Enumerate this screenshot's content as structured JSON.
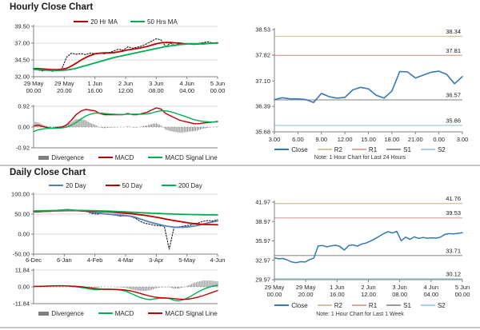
{
  "panels": {
    "hourly": {
      "title": "Hourly Close Chart"
    },
    "hourly_pivot": {
      "note": "Note: 1 Hour Chart for Last 24 Hours"
    },
    "daily": {
      "title": "Daily Close Chart"
    },
    "weekly_pivot": {
      "note": "Note: 1 Hour Chart for Last 1 Week"
    }
  },
  "colors": {
    "ma_red": "#C00000",
    "ma_green": "#00B050",
    "close_black": "#1A1A1A",
    "close_blue": "#3478B5",
    "day20_blue": "#4F81BD",
    "divergence_gray": "#7F7F7F",
    "r2_olive": "#CDC6A0",
    "r1_pink": "#E0A8A4",
    "s1_gray": "#9B9B9B",
    "s2_cyan": "#A8D4DE",
    "grid": "#D9D9D9",
    "axis": "#808080"
  },
  "legends": {
    "hourly_ma": [
      {
        "label": "20 Hr MA",
        "color": "#C00000",
        "type": "line"
      },
      {
        "label": "50 Hrs MA",
        "color": "#00B050",
        "type": "line"
      }
    ],
    "hourly_macd": [
      {
        "label": "Divergence",
        "color": "#7F7F7F",
        "type": "bar"
      },
      {
        "label": "MACD",
        "color": "#C00000",
        "type": "line"
      },
      {
        "label": "MACD Signal Line",
        "color": "#00B050",
        "type": "line"
      }
    ],
    "hourly_pivot": [
      {
        "label": "Close",
        "color": "#3478B5",
        "type": "line"
      },
      {
        "label": "R2",
        "color": "#CDC6A0",
        "type": "line"
      },
      {
        "label": "R1",
        "color": "#E0A8A4",
        "type": "line"
      },
      {
        "label": "S1",
        "color": "#9B9B9B",
        "type": "line"
      },
      {
        "label": "S2",
        "color": "#A8D4DE",
        "type": "line"
      }
    ],
    "daily_ma": [
      {
        "label": "20 Day",
        "color": "#4F81BD",
        "type": "line"
      },
      {
        "label": "50 Day",
        "color": "#C00000",
        "type": "line"
      },
      {
        "label": "200 Day",
        "color": "#00B050",
        "type": "line"
      }
    ],
    "daily_macd": [
      {
        "label": "Divergence",
        "color": "#7F7F7F",
        "type": "bar"
      },
      {
        "label": "MACD",
        "color": "#00B050",
        "type": "line"
      },
      {
        "label": "MACD Signal Line",
        "color": "#C00000",
        "type": "line"
      }
    ],
    "daily_pivot": [
      {
        "label": "Close",
        "color": "#3478B5",
        "type": "line"
      },
      {
        "label": "R2",
        "color": "#CDC6A0",
        "type": "line"
      },
      {
        "label": "R1",
        "color": "#E0A8A4",
        "type": "line"
      },
      {
        "label": "S1",
        "color": "#9B9B9B",
        "type": "line"
      },
      {
        "label": "S2",
        "color": "#A8D4DE",
        "type": "line"
      }
    ]
  },
  "chart_data": [
    {
      "key": "hourly_close",
      "type": "line",
      "title": "Hourly Close Chart",
      "grid": true,
      "zero_dotted": false,
      "yticks": [
        "39.50",
        "37.00",
        "34.50",
        "32.00"
      ],
      "ylim": [
        32.0,
        39.5
      ],
      "xticks": [
        [
          "29 May",
          "00.00"
        ],
        [
          "29 May",
          "20.00"
        ],
        [
          "1 Jun",
          "16.00"
        ],
        [
          "2 Jun",
          "12.00"
        ],
        [
          "3 Jun",
          "08.00"
        ],
        [
          "4 Jun",
          "04.00"
        ],
        [
          "5 Jun",
          "00.00"
        ]
      ],
      "series": [
        {
          "name": "Close",
          "type": "line",
          "color": "#1A1A1A",
          "width": 1.1,
          "dash": "1.6,1.9",
          "values": [
            33.3,
            33.0,
            32.85,
            33.1,
            32.8,
            33.0,
            33.2,
            34.9,
            35.5,
            35.35,
            35.45,
            35.3,
            35.5,
            35.45,
            35.55,
            35.4,
            35.6,
            35.85,
            36.1,
            35.95,
            36.45,
            36.25,
            36.4,
            36.6,
            36.9,
            37.3,
            37.65,
            37.5,
            36.5,
            37.0,
            36.6,
            37.05,
            36.85,
            36.9,
            36.85,
            36.95,
            37.1,
            37.2,
            37.0,
            37.1
          ]
        },
        {
          "name": "20 Hr MA",
          "type": "line",
          "color": "#C00000",
          "width": 1.8,
          "values": [
            33.2,
            33.2,
            33.15,
            33.1,
            33.05,
            33.05,
            33.1,
            33.25,
            33.6,
            34.0,
            34.45,
            34.85,
            35.15,
            35.4,
            35.5,
            35.55,
            35.55,
            35.6,
            35.7,
            35.85,
            36.0,
            36.1,
            36.2,
            36.35,
            36.5,
            36.7,
            36.9,
            37.05,
            37.1,
            37.1,
            37.05,
            37.0,
            36.9,
            36.9,
            36.85,
            36.9,
            36.9,
            36.95,
            37.0,
            37.05
          ]
        },
        {
          "name": "50 Hrs MA",
          "type": "line",
          "color": "#00B050",
          "width": 1.8,
          "values": [
            33.1,
            33.05,
            33.0,
            32.95,
            32.9,
            32.9,
            32.95,
            33.0,
            33.1,
            33.25,
            33.45,
            33.65,
            33.85,
            34.05,
            34.25,
            34.45,
            34.65,
            34.85,
            35.0,
            35.15,
            35.3,
            35.45,
            35.6,
            35.75,
            35.9,
            36.05,
            36.2,
            36.35,
            36.5,
            36.6,
            36.7,
            36.8,
            36.85,
            36.9,
            36.9,
            36.9,
            36.95,
            36.95,
            37.0,
            37.0
          ]
        }
      ]
    },
    {
      "key": "hourly_macd",
      "type": "bar-line",
      "grid": true,
      "zero_dotted": true,
      "yticks": [
        "0.92",
        "0.00",
        "-0.92"
      ],
      "ylim": [
        -0.92,
        0.92
      ],
      "xticks": [],
      "series": [
        {
          "name": "Divergence",
          "type": "bar",
          "color": "#7F7F7F",
          "values": [
            0.25,
            0.2,
            0.1,
            0.03,
            0.01,
            0.03,
            0.04,
            0.1,
            0.22,
            0.35,
            0.35,
            0.3,
            0.18,
            0.1,
            -0.02,
            -0.05,
            -0.03,
            -0.02,
            -0.01,
            -0.01,
            0.03,
            -0.02,
            -0.02,
            0.03,
            0.07,
            0.13,
            0.17,
            0.08,
            -0.12,
            -0.18,
            -0.22,
            -0.25,
            -0.23,
            -0.2,
            -0.18,
            -0.13,
            -0.07,
            -0.03,
            0.0,
            0.02
          ]
        },
        {
          "name": "MACD",
          "type": "line",
          "color": "#C00000",
          "width": 1.4,
          "values": [
            0.05,
            0.08,
            0.02,
            -0.03,
            -0.05,
            -0.02,
            0.0,
            0.1,
            0.3,
            0.55,
            0.7,
            0.78,
            0.75,
            0.72,
            0.6,
            0.55,
            0.55,
            0.55,
            0.55,
            0.55,
            0.6,
            0.55,
            0.55,
            0.6,
            0.65,
            0.75,
            0.85,
            0.8,
            0.6,
            0.5,
            0.4,
            0.3,
            0.25,
            0.2,
            0.15,
            0.15,
            0.18,
            0.2,
            0.22,
            0.25
          ]
        },
        {
          "name": "MACD Signal Line",
          "type": "line",
          "color": "#00B050",
          "width": 1.4,
          "values": [
            -0.2,
            -0.12,
            -0.08,
            -0.06,
            -0.06,
            -0.05,
            -0.04,
            0.0,
            0.08,
            0.2,
            0.35,
            0.48,
            0.57,
            0.62,
            0.62,
            0.6,
            0.58,
            0.57,
            0.56,
            0.56,
            0.57,
            0.57,
            0.57,
            0.57,
            0.58,
            0.62,
            0.68,
            0.72,
            0.72,
            0.68,
            0.62,
            0.55,
            0.48,
            0.4,
            0.33,
            0.28,
            0.25,
            0.23,
            0.22,
            0.23
          ]
        }
      ]
    },
    {
      "key": "hourly_pivot",
      "type": "line",
      "grid": false,
      "zero_dotted": false,
      "note": "Note: 1 Hour Chart for Last 24 Hours",
      "yticks": [
        "38.53",
        "37.82",
        "37.10",
        "36.39",
        "35.68"
      ],
      "ylim": [
        35.68,
        38.53
      ],
      "xticks": [
        "3.00",
        "6.00",
        "9.00",
        "12.00",
        "15.00",
        "18.00",
        "21.00",
        "0.00",
        "3.00"
      ],
      "hlines": [
        {
          "name": "R2",
          "value": 38.34,
          "label": "38.34",
          "color": "#CDC6A0"
        },
        {
          "name": "R1",
          "value": 37.81,
          "label": "37.81",
          "color": "#E0A8A4"
        },
        {
          "name": "S1",
          "value": 36.57,
          "label": "36.57",
          "color": "#9B9B9B"
        },
        {
          "name": "S2",
          "value": 35.86,
          "label": "35.86",
          "color": "#A8D4DE"
        }
      ],
      "series": [
        {
          "name": "Close",
          "type": "line",
          "color": "#3478B5",
          "width": 1.6,
          "values": [
            36.58,
            36.63,
            36.6,
            36.6,
            36.58,
            36.5,
            36.75,
            36.66,
            36.62,
            36.64,
            36.85,
            36.92,
            36.88,
            36.7,
            36.62,
            36.82,
            37.36,
            37.35,
            37.18,
            37.26,
            37.34,
            37.37,
            37.28,
            37.02,
            37.22
          ]
        }
      ]
    },
    {
      "key": "daily_close",
      "type": "line",
      "title": "Daily Close Chart",
      "grid": true,
      "zero_dotted": false,
      "yticks": [
        "100.00",
        "50.00",
        "0.00",
        "-50.00"
      ],
      "ylim": [
        -50.0,
        100.0
      ],
      "xticks": [
        "6-Dec",
        "6-Jan",
        "4-Feb",
        "4-Mar",
        "3-Apr",
        "5-May",
        "4-Jun"
      ],
      "series": [
        {
          "name": "Close",
          "type": "line",
          "color": "#1A1A1A",
          "width": 1.1,
          "dash": "1.6,1.9",
          "values": [
            56,
            57,
            58,
            58,
            59,
            60,
            61,
            62,
            61,
            59,
            58,
            56,
            52,
            50,
            51,
            50,
            49,
            47,
            45,
            46,
            44,
            40,
            32,
            27,
            25,
            22,
            21,
            20,
            -38,
            17,
            18,
            20,
            22,
            25,
            28,
            32,
            34,
            33,
            36
          ]
        },
        {
          "name": "20 Day",
          "type": "line",
          "color": "#4F81BD",
          "width": 1.8,
          "values": [
            57,
            57.5,
            58,
            58.5,
            59,
            59.5,
            60,
            60.5,
            60,
            59,
            58,
            57,
            55,
            53,
            51.5,
            50.5,
            49.5,
            48.5,
            47.5,
            46.5,
            45,
            42,
            38,
            34,
            30,
            27,
            24,
            21,
            19,
            17.5,
            17,
            17.5,
            18.5,
            20,
            22,
            25,
            28,
            30.5,
            33
          ]
        },
        {
          "name": "50 Day",
          "type": "line",
          "color": "#C00000",
          "width": 1.8,
          "values": [
            56,
            56.5,
            57,
            57.5,
            58,
            58.3,
            58.6,
            58.8,
            59,
            58.8,
            58.5,
            58,
            57.5,
            57,
            56.5,
            56,
            55.3,
            54.5,
            53.5,
            52.5,
            51.3,
            50,
            48.5,
            47,
            45,
            43,
            41,
            38.5,
            36,
            34,
            32,
            30,
            28,
            26.5,
            25.3,
            24.5,
            24,
            23.8,
            23.5
          ]
        },
        {
          "name": "200 Day",
          "type": "line",
          "color": "#00B050",
          "width": 1.8,
          "values": [
            58,
            58.2,
            58.4,
            58.6,
            58.8,
            59,
            59.2,
            59.4,
            59.5,
            59.4,
            59.2,
            59,
            58.7,
            58.4,
            58,
            57.6,
            57.2,
            56.7,
            56.2,
            55.6,
            55,
            54.4,
            53.8,
            53.2,
            52.6,
            52,
            51.5,
            51,
            50.6,
            50.2,
            49.8,
            49.5,
            49.2,
            48.9,
            48.7,
            48.5,
            48.3,
            48.1,
            48
          ]
        }
      ]
    },
    {
      "key": "daily_macd",
      "type": "bar-line",
      "grid": true,
      "zero_dotted": true,
      "yticks": [
        "11.84",
        "0.00",
        "-11.84"
      ],
      "ylim": [
        -11.84,
        11.84
      ],
      "xticks": [],
      "series": [
        {
          "name": "Divergence",
          "type": "bar",
          "color": "#7F7F7F",
          "values": [
            0,
            0.05,
            0.1,
            0.1,
            0.1,
            0.15,
            0.1,
            -0.05,
            -0.2,
            -0.3,
            -0.5,
            -0.8,
            -0.9,
            -0.7,
            -0.2,
            0,
            -0.1,
            -0.2,
            -0.3,
            -0.7,
            -1.7,
            -2.4,
            -2.9,
            -2.9,
            -2.5,
            -1.3,
            -0.4,
            -0.2,
            -0.2,
            -1.2,
            -1.2,
            -0.2,
            1.1,
            2.5,
            3.7,
            4.4,
            4.5,
            4.3,
            3.8
          ]
        },
        {
          "name": "MACD",
          "type": "line",
          "color": "#00B050",
          "width": 1.4,
          "values": [
            0.3,
            0.4,
            0.5,
            0.6,
            0.7,
            0.8,
            0.8,
            0.6,
            0.3,
            0.0,
            -0.5,
            -1.2,
            -1.8,
            -2.0,
            -1.8,
            -1.7,
            -1.8,
            -2.0,
            -2.3,
            -3.0,
            -4.5,
            -6.0,
            -7.5,
            -8.5,
            -9.0,
            -8.5,
            -8.0,
            -8.0,
            -8.2,
            -9.5,
            -9.8,
            -9.0,
            -7.5,
            -5.5,
            -3.5,
            -1.8,
            -0.5,
            0.5,
            1.2
          ]
        },
        {
          "name": "MACD Signal Line",
          "type": "line",
          "color": "#C00000",
          "width": 1.4,
          "values": [
            0.3,
            0.35,
            0.4,
            0.5,
            0.6,
            0.65,
            0.7,
            0.65,
            0.5,
            0.3,
            0.0,
            -0.4,
            -0.9,
            -1.3,
            -1.6,
            -1.7,
            -1.7,
            -1.8,
            -2.0,
            -2.3,
            -2.8,
            -3.6,
            -4.6,
            -5.6,
            -6.5,
            -7.2,
            -7.6,
            -7.8,
            -8.0,
            -8.3,
            -8.6,
            -8.8,
            -8.6,
            -8.0,
            -7.2,
            -6.2,
            -5.0,
            -3.8,
            -2.6
          ]
        }
      ]
    },
    {
      "key": "weekly_pivot",
      "type": "line",
      "grid": false,
      "zero_dotted": false,
      "note": "Note: 1 Hour Chart for Last 1 Week",
      "yticks": [
        "41.97",
        "38.97",
        "35.97",
        "32.97",
        "29.97"
      ],
      "ylim": [
        29.97,
        41.97
      ],
      "xticks": [
        [
          "29 May",
          "00.00"
        ],
        [
          "29 May",
          "20.00"
        ],
        [
          "1 Jun",
          "16.00"
        ],
        [
          "2 Jun",
          "12.00"
        ],
        [
          "3 Jun",
          "08.00"
        ],
        [
          "4 Jun",
          "04.00"
        ],
        [
          "5 Jun",
          "00.00"
        ]
      ],
      "hlines": [
        {
          "name": "R2",
          "value": 41.76,
          "label": "41.76",
          "color": "#CDC6A0"
        },
        {
          "name": "R1",
          "value": 39.53,
          "label": "39.53",
          "color": "#E0A8A4"
        },
        {
          "name": "S1",
          "value": 33.71,
          "label": "33.71",
          "color": "#9B9B9B"
        },
        {
          "name": "S2",
          "value": 30.12,
          "label": "30.12",
          "color": "#A8D4DE"
        }
      ],
      "series": [
        {
          "name": "Close",
          "type": "line",
          "color": "#3478B5",
          "width": 1.5,
          "values": [
            33.35,
            33.2,
            33.25,
            33.0,
            32.7,
            32.6,
            32.75,
            32.7,
            33.05,
            33.3,
            35.2,
            35.25,
            35.05,
            35.2,
            35.3,
            35.1,
            34.55,
            35.25,
            35.35,
            35.15,
            35.5,
            35.65,
            35.95,
            36.3,
            36.7,
            37.1,
            37.4,
            37.2,
            37.45,
            36.0,
            36.55,
            36.2,
            36.6,
            36.35,
            36.5,
            36.4,
            36.45,
            36.4,
            36.55,
            37.0,
            37.1,
            37.05,
            37.15,
            37.25
          ]
        }
      ]
    }
  ]
}
